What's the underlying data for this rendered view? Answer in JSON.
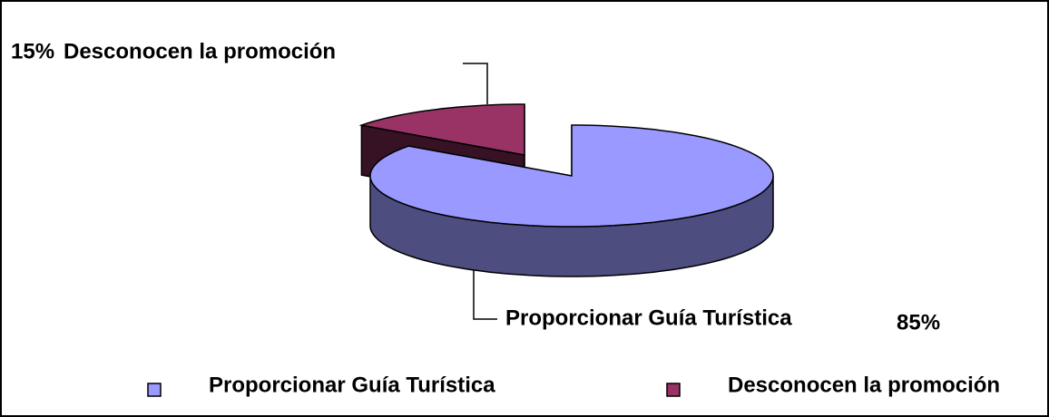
{
  "chart_data": {
    "type": "pie3d",
    "categories": [
      "Proporcionar Guía Turística",
      "Desconocen la promoción"
    ],
    "values": [
      85,
      15
    ],
    "value_labels": [
      "85%",
      "15%"
    ],
    "colors": [
      "#9999ff",
      "#993366"
    ],
    "legend": "bottom"
  }
}
